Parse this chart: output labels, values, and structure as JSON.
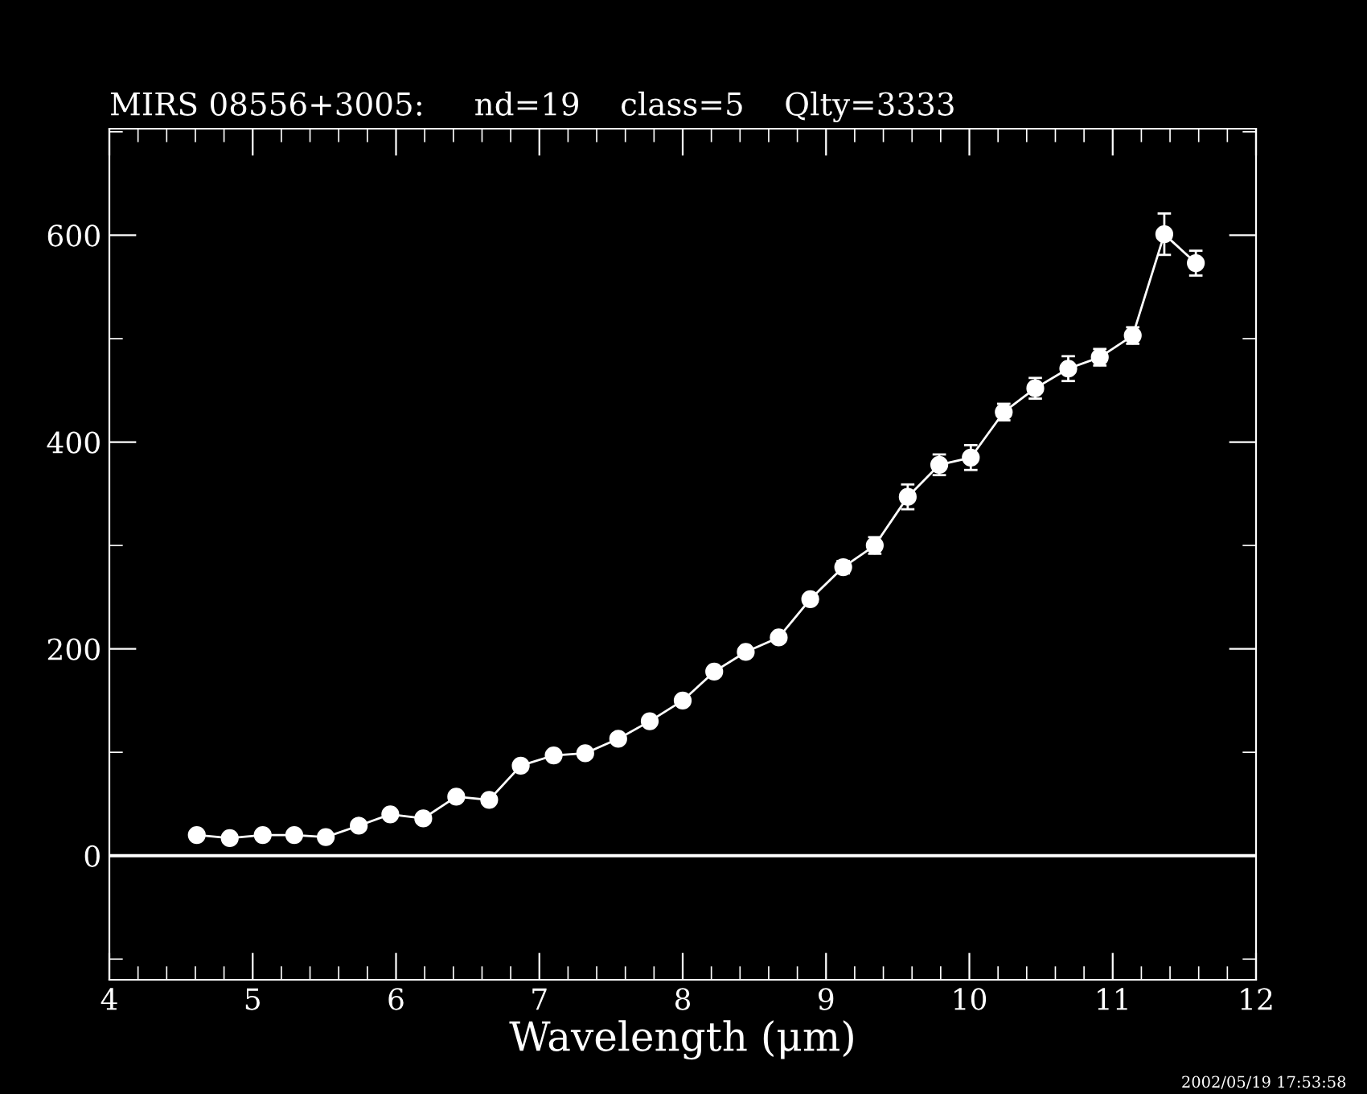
{
  "chart_data": {
    "type": "line",
    "title": "MIRS 08556+3005:     nd=19    class=5    Qlty=3333",
    "xlabel": "Wavelength (μm)",
    "annotations": [
      "2002/05/19 17:53:58"
    ],
    "x": [
      4.61,
      4.84,
      5.07,
      5.29,
      5.51,
      5.74,
      5.96,
      6.19,
      6.42,
      6.65,
      6.87,
      7.1,
      7.32,
      7.55,
      7.77,
      8.0,
      8.22,
      8.44,
      8.67,
      8.89,
      9.12,
      9.34,
      9.57,
      9.79,
      10.01,
      10.24,
      10.46,
      10.69,
      10.91,
      11.14,
      11.36,
      11.58
    ],
    "series": [
      {
        "color": "#ffffff",
        "values": [
          20,
          17,
          20,
          20,
          18,
          29,
          40,
          36,
          57,
          54,
          87,
          97,
          99,
          113,
          130,
          150,
          178,
          197,
          211,
          248,
          279,
          300,
          347,
          378,
          385,
          429,
          452,
          471,
          482,
          503,
          601,
          573
        ],
        "errors": [
          null,
          null,
          null,
          null,
          null,
          null,
          null,
          null,
          null,
          null,
          null,
          null,
          null,
          null,
          null,
          null,
          null,
          null,
          null,
          null,
          6,
          8,
          12,
          10,
          12,
          8,
          10,
          12,
          8,
          8,
          20,
          12
        ]
      }
    ],
    "marker": "circle",
    "line_style": "solid",
    "xlim": [
      4,
      12
    ],
    "xticks": [
      4,
      5,
      6,
      7,
      8,
      9,
      10,
      11,
      12
    ],
    "ylim": [
      -120,
      703
    ],
    "yticks": [
      0,
      200,
      400,
      600
    ],
    "ref_lines": [
      {
        "axis": "y",
        "value": 0,
        "color": "#ffffff",
        "line_style": "solid"
      }
    ],
    "grid": false,
    "legend": false
  }
}
